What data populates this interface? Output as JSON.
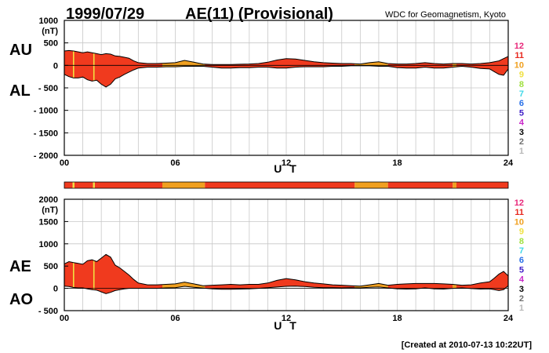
{
  "header": {
    "date": "1999/07/29",
    "title": "AE(11) (Provisional)",
    "source": "WDC for Geomagnetism, Kyoto"
  },
  "footer": {
    "created": "[Created at 2010-07-13 10:22UT]"
  },
  "colors": {
    "fill_red": "#f03a1e",
    "fill_orange": "#f0a020",
    "fill_yellow": "#f0e040",
    "grid": "#c8c8c8",
    "outline": "#000000"
  },
  "station_legend": [
    {
      "label": "12",
      "color": "#e8287a"
    },
    {
      "label": "11",
      "color": "#e8281e"
    },
    {
      "label": "10",
      "color": "#f0a020"
    },
    {
      "label": "9",
      "color": "#f0e040"
    },
    {
      "label": "8",
      "color": "#a0e040"
    },
    {
      "label": "7",
      "color": "#40d8e8"
    },
    {
      "label": "6",
      "color": "#2870e8"
    },
    {
      "label": "5",
      "color": "#4020c8"
    },
    {
      "label": "4",
      "color": "#c828c8"
    },
    {
      "label": "3",
      "color": "#000000"
    },
    {
      "label": "2",
      "color": "#707070"
    },
    {
      "label": "1",
      "color": "#b8b8b8"
    }
  ],
  "station_bar": [
    {
      "from": 0,
      "to": 0.45,
      "color": "#f03a1e"
    },
    {
      "from": 0.45,
      "to": 0.55,
      "color": "#f0e040"
    },
    {
      "from": 0.55,
      "to": 1.55,
      "color": "#f03a1e"
    },
    {
      "from": 1.55,
      "to": 1.65,
      "color": "#f0e040"
    },
    {
      "from": 1.65,
      "to": 5.3,
      "color": "#f03a1e"
    },
    {
      "from": 5.3,
      "to": 7.6,
      "color": "#f0a020"
    },
    {
      "from": 7.6,
      "to": 15.7,
      "color": "#f03a1e"
    },
    {
      "from": 15.7,
      "to": 17.5,
      "color": "#f0a020"
    },
    {
      "from": 17.5,
      "to": 21.0,
      "color": "#f03a1e"
    },
    {
      "from": 21.0,
      "to": 21.2,
      "color": "#f0a020"
    },
    {
      "from": 21.2,
      "to": 24,
      "color": "#f03a1e"
    }
  ],
  "chart_data": [
    {
      "type": "area",
      "name_upper": "AU",
      "name_lower": "AL",
      "ylabel_unit": "(nT)",
      "xlabel": "U T",
      "xlim": [
        0,
        24
      ],
      "ylim": [
        -2000,
        1000
      ],
      "yticks": [
        1000,
        500,
        0,
        -500,
        -1000,
        -1500,
        -2000
      ],
      "ytick_labels": [
        "1000",
        "500",
        "0",
        "- 500",
        "- 1000",
        "- 1500",
        "- 2000"
      ],
      "xticks": [
        0,
        6,
        12,
        18,
        24
      ],
      "xtick_labels": [
        "00",
        "06",
        "12",
        "18",
        "24"
      ],
      "x": [
        0,
        0.25,
        0.5,
        0.75,
        1.0,
        1.25,
        1.5,
        1.75,
        2.0,
        2.25,
        2.5,
        2.75,
        3.0,
        3.25,
        3.5,
        3.75,
        4.0,
        4.5,
        5.0,
        5.5,
        6.0,
        6.5,
        7.0,
        7.5,
        8.0,
        8.5,
        9.0,
        9.5,
        10.0,
        10.5,
        11.0,
        11.5,
        12.0,
        12.5,
        13.0,
        13.5,
        14.0,
        14.5,
        15.0,
        15.5,
        16.0,
        16.5,
        17.0,
        17.5,
        18.0,
        18.5,
        19.0,
        19.5,
        20.0,
        20.5,
        21.0,
        21.5,
        22.0,
        22.5,
        23.0,
        23.25,
        23.5,
        23.75,
        24.0
      ],
      "upper": [
        320,
        330,
        320,
        300,
        280,
        300,
        280,
        260,
        240,
        260,
        250,
        210,
        200,
        180,
        160,
        100,
        60,
        40,
        40,
        50,
        60,
        110,
        70,
        30,
        20,
        20,
        20,
        25,
        30,
        40,
        70,
        120,
        150,
        140,
        110,
        80,
        60,
        50,
        40,
        40,
        30,
        60,
        80,
        40,
        30,
        30,
        40,
        60,
        40,
        30,
        40,
        40,
        30,
        40,
        60,
        80,
        100,
        150,
        200
      ],
      "lower": [
        -200,
        -250,
        -280,
        -280,
        -260,
        -320,
        -350,
        -330,
        -420,
        -480,
        -420,
        -300,
        -260,
        -200,
        -150,
        -100,
        -60,
        -40,
        -40,
        -30,
        -30,
        -20,
        -20,
        -20,
        -40,
        -60,
        -60,
        -50,
        -50,
        -40,
        -40,
        -60,
        -60,
        -40,
        -30,
        -30,
        -30,
        -20,
        -20,
        -10,
        -10,
        -10,
        -20,
        -20,
        -50,
        -60,
        -60,
        -40,
        -60,
        -60,
        -40,
        -20,
        -40,
        -70,
        -80,
        -140,
        -200,
        -220,
        -80
      ],
      "segments": [
        {
          "from": 0,
          "to": 5.3,
          "color": "#f03a1e"
        },
        {
          "from": 5.3,
          "to": 7.6,
          "color": "#f0a020"
        },
        {
          "from": 7.6,
          "to": 15.7,
          "color": "#f03a1e"
        },
        {
          "from": 15.7,
          "to": 17.5,
          "color": "#f0a020"
        },
        {
          "from": 17.5,
          "to": 21.0,
          "color": "#f03a1e"
        },
        {
          "from": 21.0,
          "to": 21.2,
          "color": "#f0a020"
        },
        {
          "from": 21.2,
          "to": 24,
          "color": "#f03a1e"
        }
      ],
      "markers": [
        0.5,
        1.6
      ]
    },
    {
      "type": "area",
      "name_upper": "AE",
      "name_lower": "AO",
      "ylabel_unit": "(nT)",
      "xlabel": "U T",
      "xlim": [
        0,
        24
      ],
      "ylim": [
        -500,
        2000
      ],
      "yticks": [
        2000,
        1500,
        1000,
        500,
        0,
        -500
      ],
      "ytick_labels": [
        "2000",
        "1500",
        "1000",
        "500",
        "0",
        "- 500"
      ],
      "xticks": [
        0,
        6,
        12,
        18,
        24
      ],
      "xtick_labels": [
        "00",
        "06",
        "12",
        "18",
        "24"
      ],
      "x": [
        0,
        0.25,
        0.5,
        0.75,
        1.0,
        1.25,
        1.5,
        1.75,
        2.0,
        2.25,
        2.5,
        2.75,
        3.0,
        3.25,
        3.5,
        3.75,
        4.0,
        4.5,
        5.0,
        5.5,
        6.0,
        6.5,
        7.0,
        7.5,
        8.0,
        8.5,
        9.0,
        9.5,
        10.0,
        10.5,
        11.0,
        11.5,
        12.0,
        12.5,
        13.0,
        13.5,
        14.0,
        14.5,
        15.0,
        15.5,
        16.0,
        16.5,
        17.0,
        17.5,
        18.0,
        18.5,
        19.0,
        19.5,
        20.0,
        20.5,
        21.0,
        21.5,
        22.0,
        22.5,
        23.0,
        23.25,
        23.5,
        23.75,
        24.0
      ],
      "upper": [
        550,
        600,
        580,
        560,
        540,
        620,
        640,
        600,
        680,
        760,
        700,
        520,
        460,
        380,
        300,
        200,
        120,
        80,
        80,
        90,
        100,
        140,
        100,
        60,
        70,
        80,
        90,
        80,
        90,
        90,
        120,
        180,
        220,
        190,
        150,
        120,
        100,
        80,
        70,
        60,
        50,
        80,
        110,
        70,
        90,
        100,
        110,
        110,
        110,
        100,
        90,
        70,
        80,
        120,
        150,
        230,
        320,
        380,
        280
      ],
      "lower": [
        50,
        40,
        20,
        10,
        10,
        -10,
        -30,
        -40,
        -80,
        -120,
        -90,
        -50,
        -30,
        -10,
        0,
        0,
        0,
        0,
        0,
        10,
        15,
        45,
        25,
        5,
        -10,
        -20,
        -20,
        -15,
        -10,
        0,
        15,
        30,
        45,
        50,
        40,
        25,
        15,
        15,
        10,
        15,
        10,
        25,
        30,
        10,
        -10,
        -15,
        -10,
        10,
        -10,
        -15,
        0,
        10,
        -5,
        -15,
        -10,
        -30,
        -50,
        -30,
        60
      ],
      "segments": [
        {
          "from": 0,
          "to": 5.3,
          "color": "#f03a1e"
        },
        {
          "from": 5.3,
          "to": 7.6,
          "color": "#f0a020"
        },
        {
          "from": 7.6,
          "to": 15.7,
          "color": "#f03a1e"
        },
        {
          "from": 15.7,
          "to": 17.5,
          "color": "#f0a020"
        },
        {
          "from": 17.5,
          "to": 21.0,
          "color": "#f03a1e"
        },
        {
          "from": 21.0,
          "to": 21.2,
          "color": "#f0a020"
        },
        {
          "from": 21.2,
          "to": 24,
          "color": "#f03a1e"
        }
      ],
      "markers": [
        0.5,
        1.6
      ]
    }
  ]
}
